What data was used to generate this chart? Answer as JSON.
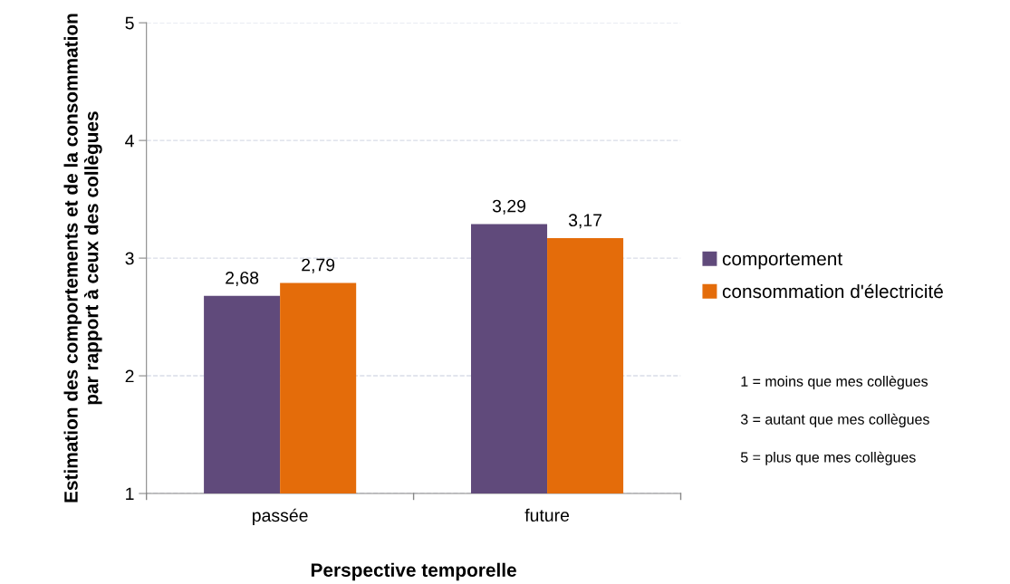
{
  "chart_data": {
    "type": "bar",
    "xlabel": "Perspective temporelle",
    "ylabel": "Estimation des comportements et de la consommation par rapport à ceux des collègues",
    "categories": [
      "passée",
      "future"
    ],
    "series": [
      {
        "name": "comportement",
        "color": "#604a7b",
        "values": [
          2.68,
          3.29
        ],
        "value_labels": [
          "2,68",
          "3,29"
        ]
      },
      {
        "name": "consommation d'électricité",
        "color": "#e46c0a",
        "values": [
          2.79,
          3.17
        ],
        "value_labels": [
          "2,79",
          "3,17"
        ]
      }
    ],
    "ylim": [
      1,
      5
    ],
    "yticks": [
      1,
      2,
      3,
      4,
      5
    ],
    "grid": "y",
    "legend": "right",
    "annotations": [
      "1 = moins que mes collègues",
      "3 = autant que mes collègues",
      "5 = plus que mes collègues"
    ]
  }
}
